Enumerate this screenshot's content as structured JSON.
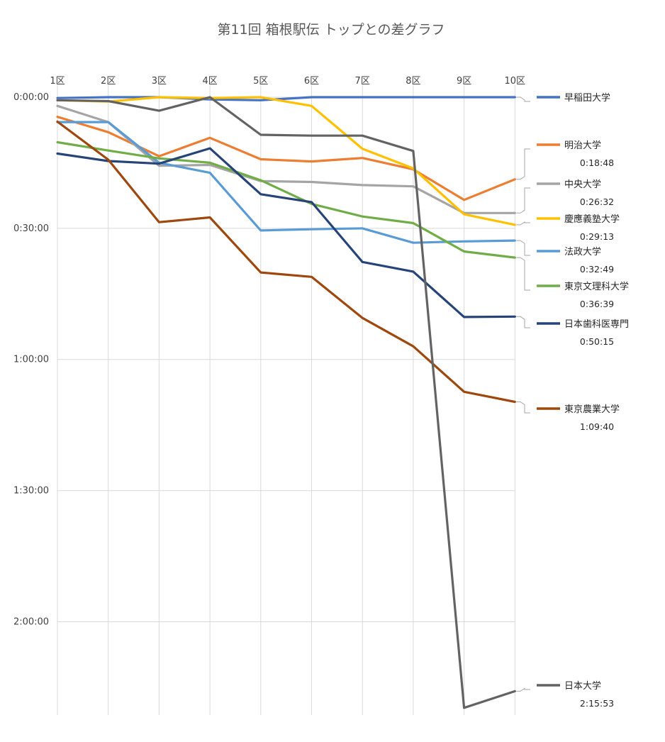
{
  "chart_data": {
    "type": "line",
    "title": "第11回 箱根駅伝 トップとの差グラフ",
    "xlabel": "",
    "ylabel": "",
    "categories": [
      "1区",
      "2区",
      "3区",
      "4区",
      "5区",
      "6区",
      "7区",
      "8区",
      "9区",
      "10区"
    ],
    "y_unit": "minutes behind leader",
    "y_axis_reversed": true,
    "ylim": [
      0,
      141
    ],
    "y_ticks": [
      {
        "value": 0,
        "label": "0:00:00"
      },
      {
        "value": 30,
        "label": "0:30:00"
      },
      {
        "value": 60,
        "label": "1:00:00"
      },
      {
        "value": 90,
        "label": "1:30:00"
      },
      {
        "value": 120,
        "label": "2:00:00"
      }
    ],
    "grid": true,
    "legend": "right, labels at line ends",
    "series": [
      {
        "name": "早稲田大学",
        "color": "#4472C4",
        "gap_label": "",
        "values": [
          0.2,
          0,
          0,
          0.5,
          0.7,
          0,
          0,
          0,
          0,
          0
        ]
      },
      {
        "name": "明治大学",
        "color": "#ED7D31",
        "gap_label": "0:18:48",
        "values": [
          4.5,
          8,
          13.5,
          9.3,
          14.2,
          14.7,
          13.9,
          16.5,
          23.5,
          18.8
        ]
      },
      {
        "name": "中央大学",
        "color": "#A5A5A5",
        "gap_label": "0:26:32",
        "values": [
          2,
          5.7,
          15.7,
          15.5,
          19.2,
          19.4,
          20.1,
          20.4,
          26.5,
          26.5
        ]
      },
      {
        "name": "慶應義塾大学",
        "color": "#FFC000",
        "gap_label": "0:29:13",
        "values": [
          0.7,
          1,
          0,
          0.2,
          0,
          2,
          11.8,
          16.3,
          26.8,
          29.2
        ]
      },
      {
        "name": "法政大学",
        "color": "#5B9BD5",
        "gap_label": "0:32:49",
        "values": [
          5.7,
          5.7,
          15,
          17.3,
          30.5,
          30.2,
          30,
          33.3,
          33,
          32.8
        ]
      },
      {
        "name": "東京文理科大学",
        "color": "#70AD47",
        "gap_label": "0:36:39",
        "values": [
          10.3,
          12.2,
          14,
          15,
          19,
          24.4,
          27.3,
          28.8,
          35.3,
          36.7
        ]
      },
      {
        "name": "日本歯科医専門",
        "color": "#264478",
        "gap_label": "0:50:15",
        "values": [
          12.9,
          14.6,
          15.2,
          11.7,
          22.2,
          24,
          37.7,
          39.9,
          50.3,
          50.2
        ]
      },
      {
        "name": "東京農業大学",
        "color": "#9E480E",
        "gap_label": "1:09:40",
        "values": [
          5.6,
          14.3,
          28.6,
          27.5,
          40.1,
          41.1,
          50.5,
          57,
          67.4,
          69.7
        ]
      },
      {
        "name": "日本大学",
        "color": "#636363",
        "gap_label": "2:15:53",
        "values": [
          0.7,
          0.9,
          3.1,
          0,
          8.6,
          8.8,
          8.8,
          12.3,
          139.7,
          135.9
        ]
      }
    ]
  }
}
